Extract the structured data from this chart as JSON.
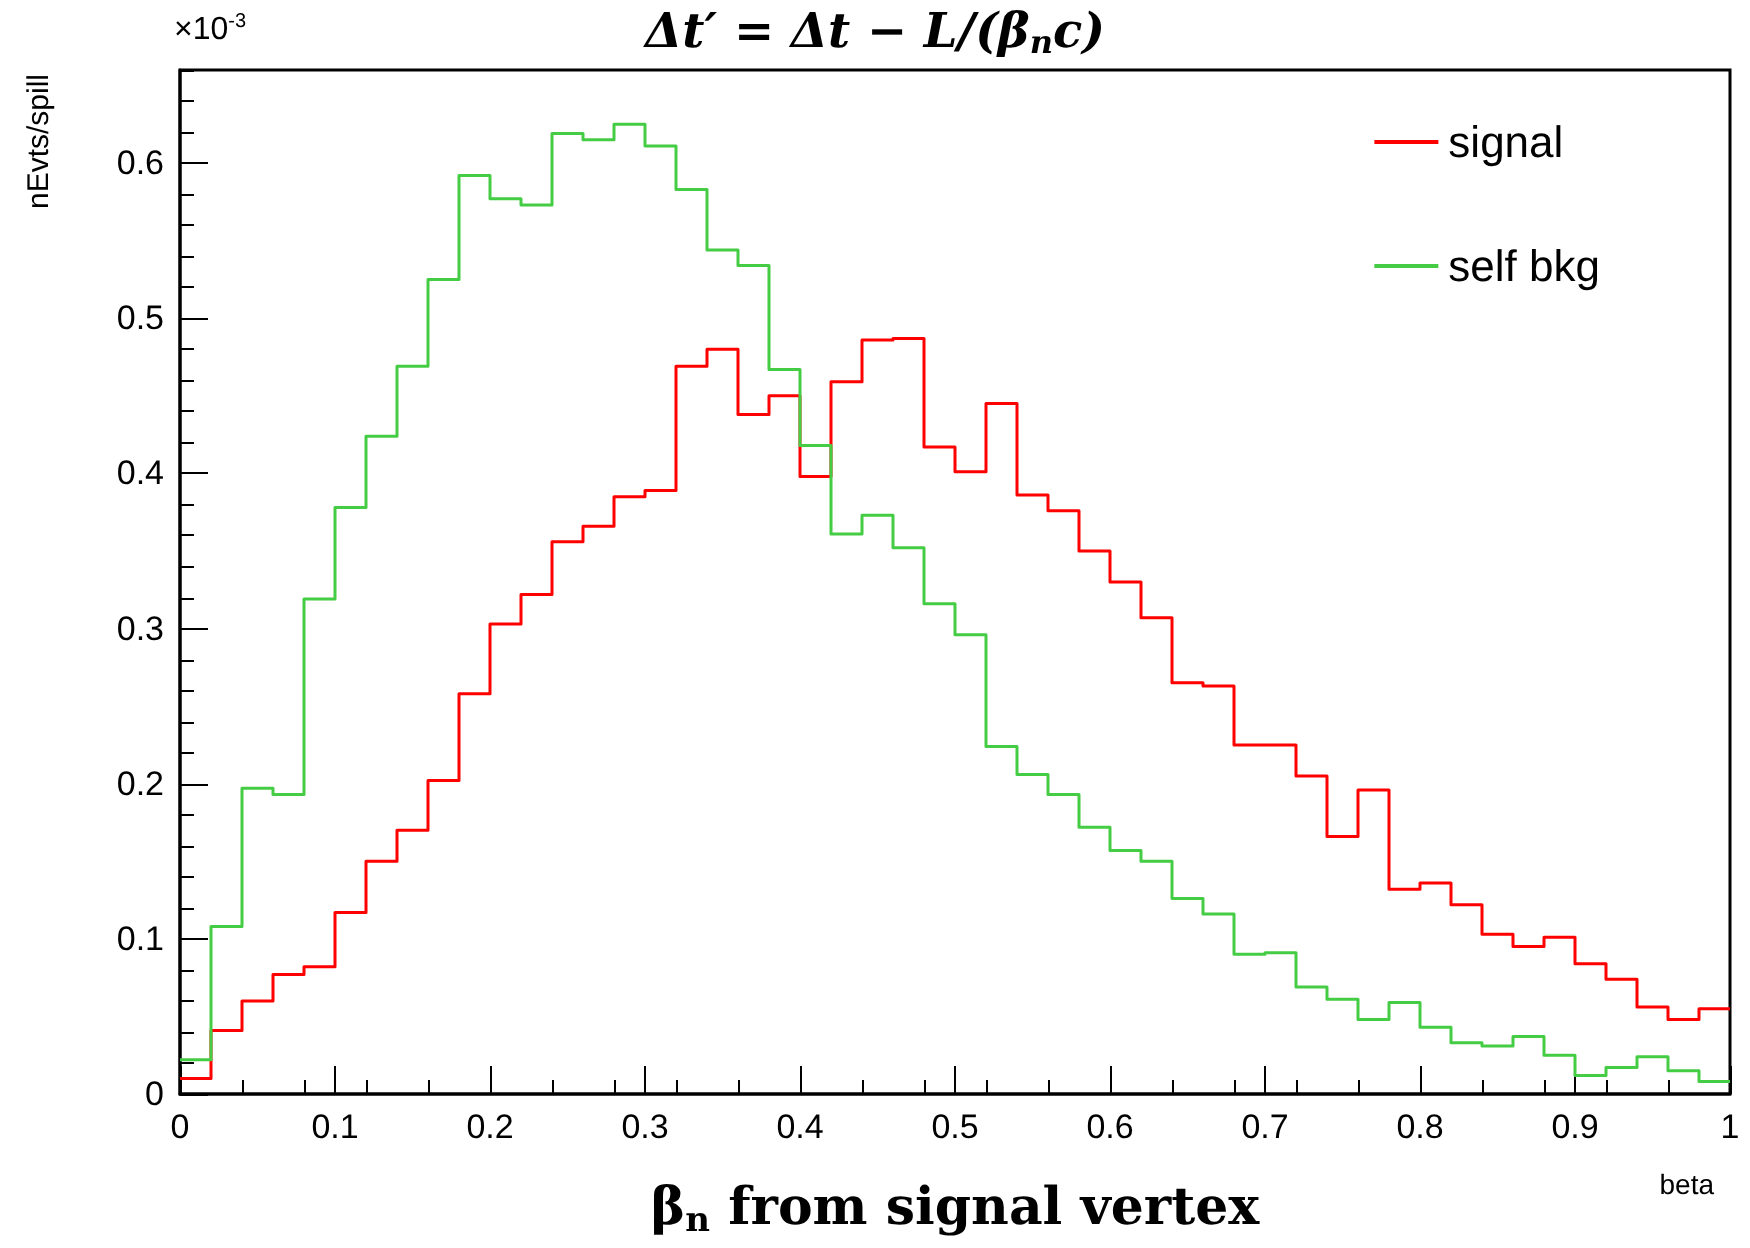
{
  "chart_data": {
    "type": "histogram",
    "title": "Δt′ = Δt − L/(β$_{n}$c)",
    "xlabel": "β$_{n}$ from signal vertex",
    "ylabel": "nEvts/spill",
    "annotations": [
      "×10$^{-3}$",
      "beta"
    ],
    "bins": [
      0,
      0.02,
      0.04,
      0.06,
      0.08,
      0.1,
      0.12,
      0.14,
      0.16,
      0.18,
      0.2,
      0.22,
      0.24,
      0.26,
      0.28,
      0.3,
      0.32,
      0.34,
      0.36,
      0.38,
      0.4,
      0.42,
      0.44,
      0.46,
      0.48,
      0.5,
      0.52,
      0.54,
      0.56,
      0.58,
      0.6,
      0.62,
      0.64,
      0.66,
      0.68,
      0.7,
      0.72,
      0.74,
      0.76,
      0.78,
      0.8,
      0.82,
      0.84,
      0.86,
      0.88,
      0.9,
      0.92,
      0.94,
      0.96,
      0.98,
      1
    ],
    "series": [
      {
        "name": "signal",
        "color": "#ff0000",
        "values": [
          0.01,
          0.041,
          0.06,
          0.077,
          0.082,
          0.117,
          0.15,
          0.17,
          0.202,
          0.258,
          0.303,
          0.322,
          0.356,
          0.366,
          0.385,
          0.389,
          0.469,
          0.48,
          0.438,
          0.45,
          0.398,
          0.459,
          0.486,
          0.487,
          0.417,
          0.401,
          0.445,
          0.386,
          0.376,
          0.35,
          0.33,
          0.307,
          0.265,
          0.263,
          0.225,
          0.225,
          0.205,
          0.166,
          0.196,
          0.132,
          0.136,
          0.122,
          0.103,
          0.095,
          0.101,
          0.084,
          0.074,
          0.056,
          0.048,
          0.055
        ]
      },
      {
        "name": "self bkg",
        "color": "#44cc44",
        "values": [
          0.022,
          0.108,
          0.197,
          0.193,
          0.319,
          0.378,
          0.424,
          0.469,
          0.525,
          0.592,
          0.577,
          0.573,
          0.619,
          0.615,
          0.625,
          0.611,
          0.583,
          0.544,
          0.534,
          0.467,
          0.418,
          0.361,
          0.373,
          0.352,
          0.316,
          0.296,
          0.224,
          0.206,
          0.193,
          0.172,
          0.157,
          0.15,
          0.126,
          0.116,
          0.09,
          0.091,
          0.069,
          0.061,
          0.048,
          0.059,
          0.043,
          0.033,
          0.031,
          0.037,
          0.025,
          0.012,
          0.017,
          0.024,
          0.015,
          0.008
        ]
      }
    ],
    "xlim": [
      0,
      1
    ],
    "xticks": [
      0,
      0.1,
      0.2,
      0.3,
      0.4,
      0.5,
      0.6,
      0.7,
      0.8,
      0.9,
      1
    ],
    "ylim": [
      0,
      0.66
    ],
    "yticks": [
      0,
      0.1,
      0.2,
      0.3,
      0.4,
      0.5,
      0.6
    ],
    "grid": false,
    "legend": "top right"
  }
}
